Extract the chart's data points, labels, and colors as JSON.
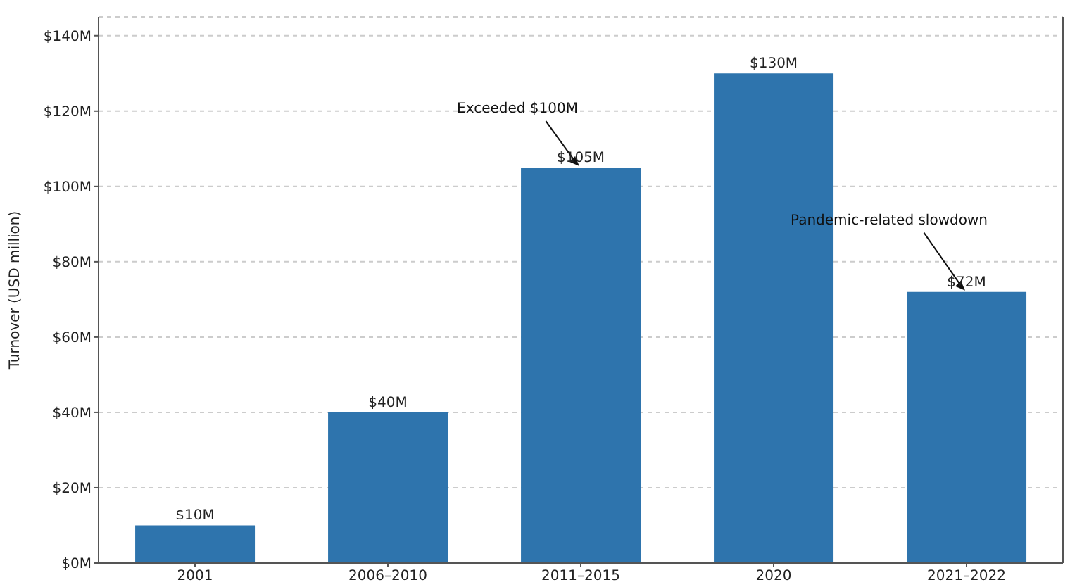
{
  "chart_data": {
    "type": "bar",
    "ylabel": "Turnover (USD million)",
    "categories": [
      "2001",
      "2006–2010",
      "2011–2015",
      "2020",
      "2021–2022"
    ],
    "values": [
      10,
      40,
      105,
      130,
      72
    ],
    "value_labels": [
      "$10M",
      "$40M",
      "$105M",
      "$130M",
      "$72M"
    ],
    "color": "#2e74ad",
    "ylim": [
      0,
      145
    ],
    "yticks": [
      {
        "value": 0,
        "label": "$0M"
      },
      {
        "value": 20,
        "label": "$20M"
      },
      {
        "value": 40,
        "label": "$40M"
      },
      {
        "value": 60,
        "label": "$60M"
      },
      {
        "value": 80,
        "label": "$80M"
      },
      {
        "value": 100,
        "label": "$100M"
      },
      {
        "value": 120,
        "label": "$120M"
      },
      {
        "value": 140,
        "label": "$140M"
      }
    ],
    "grid": "y",
    "annotations": [
      {
        "text": "Exceeded $100M",
        "x": "2011–2015",
        "y": 105
      },
      {
        "text": "Pandemic-related slowdown",
        "x": "2021–2022",
        "y": 72
      }
    ]
  }
}
